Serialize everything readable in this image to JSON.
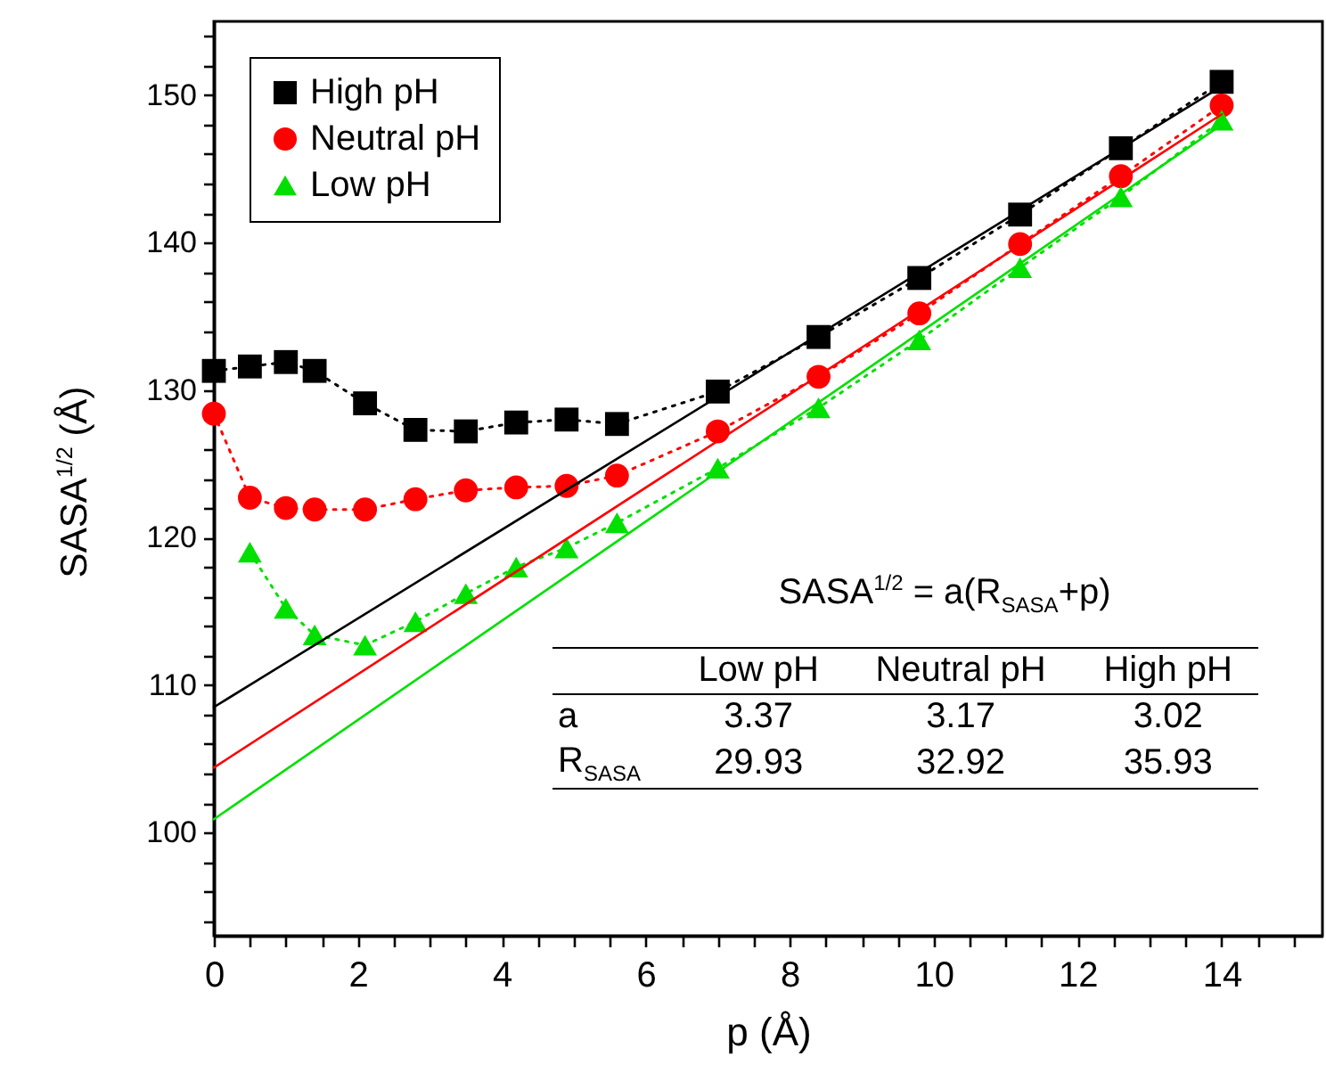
{
  "chart_data": {
    "type": "line",
    "xlabel": "p (Å)",
    "ylabel": "SASA$^{1/2}$ (Å)",
    "x": [
      0,
      0.5,
      1,
      1.4,
      2.1,
      2.8,
      3.5,
      4.2,
      4.9,
      5.6,
      7,
      8.4,
      9.8,
      11.2,
      12.6,
      14
    ],
    "xlim": [
      0,
      15.4
    ],
    "ylim": [
      93,
      155
    ],
    "xticks": [
      0,
      {
        "value": 0.5,
        "label": null
      },
      {
        "value": 1,
        "label": null
      },
      {
        "value": 1.5,
        "label": null
      },
      2,
      {
        "value": 2.5,
        "label": null
      },
      {
        "value": 3,
        "label": null
      },
      {
        "value": 3.5,
        "label": null
      },
      4,
      {
        "value": 4.5,
        "label": null
      },
      {
        "value": 5,
        "label": null
      },
      {
        "value": 5.5,
        "label": null
      },
      6,
      {
        "value": 6.5,
        "label": null
      },
      {
        "value": 7,
        "label": null
      },
      {
        "value": 7.5,
        "label": null
      },
      8,
      {
        "value": 8.5,
        "label": null
      },
      {
        "value": 9,
        "label": null
      },
      {
        "value": 9.5,
        "label": null
      },
      10,
      {
        "value": 10.5,
        "label": null
      },
      {
        "value": 11,
        "label": null
      },
      {
        "value": 11.5,
        "label": null
      },
      12,
      {
        "value": 12.5,
        "label": null
      },
      {
        "value": 13,
        "label": null
      },
      {
        "value": 13.5,
        "label": null
      },
      14,
      {
        "value": 14.5,
        "label": null
      },
      {
        "value": 15,
        "label": null
      }
    ],
    "yticks": [
      {
        "value": 94,
        "label": null
      },
      {
        "value": 96,
        "label": null
      },
      {
        "value": 98,
        "label": null
      },
      100,
      {
        "value": 102,
        "label": null
      },
      {
        "value": 104,
        "label": null
      },
      {
        "value": 106,
        "label": null
      },
      {
        "value": 108,
        "label": null
      },
      110,
      {
        "value": 112,
        "label": null
      },
      {
        "value": 114,
        "label": null
      },
      {
        "value": 116,
        "label": null
      },
      {
        "value": 118,
        "label": null
      },
      120,
      {
        "value": 122,
        "label": null
      },
      {
        "value": 124,
        "label": null
      },
      {
        "value": 126,
        "label": null
      },
      {
        "value": 128,
        "label": null
      },
      130,
      {
        "value": 132,
        "label": null
      },
      {
        "value": 134,
        "label": null
      },
      {
        "value": 136,
        "label": null
      },
      {
        "value": 138,
        "label": null
      },
      140,
      {
        "value": 142,
        "label": null
      },
      {
        "value": 144,
        "label": null
      },
      {
        "value": 146,
        "label": null
      },
      {
        "value": 148,
        "label": null
      },
      150,
      {
        "value": 152,
        "label": null
      },
      {
        "value": 154,
        "label": null
      }
    ],
    "grid": false,
    "legend": "top left",
    "series": [
      {
        "name": "High pH",
        "color": "#000000",
        "marker": "square",
        "line_style": "dotted",
        "values": [
          131.3,
          131.6,
          131.9,
          131.3,
          129.1,
          127.3,
          127.2,
          127.8,
          128.0,
          127.7,
          129.9,
          133.6,
          137.6,
          141.9,
          146.4,
          150.9
        ]
      },
      {
        "name": "Neutral pH",
        "color": "#ff0000",
        "marker": "circle",
        "line_style": "dotted",
        "values": [
          128.4,
          122.7,
          122.0,
          121.9,
          121.9,
          122.6,
          123.2,
          123.4,
          123.5,
          124.2,
          127.2,
          130.9,
          135.2,
          139.9,
          144.5,
          149.3
        ]
      },
      {
        "name": "Low pH",
        "color": "#00e000",
        "marker": "triangle",
        "line_style": "dotted",
        "values": [
          null,
          119.0,
          115.2,
          113.4,
          112.7,
          114.3,
          116.2,
          118.0,
          119.3,
          121.0,
          124.7,
          128.8,
          133.4,
          138.3,
          143.1,
          148.3
        ]
      },
      {
        "type": "line",
        "color": "#000000",
        "marker": "none",
        "line_style": "solid",
        "values": [
          108.5,
          null,
          null,
          null,
          null,
          null,
          null,
          null,
          null,
          null,
          null,
          null,
          null,
          null,
          null,
          150.6
        ]
      },
      {
        "type": "line",
        "color": "#ff0000",
        "marker": "none",
        "line_style": "solid",
        "values": [
          104.4,
          null,
          null,
          null,
          null,
          null,
          null,
          null,
          null,
          null,
          null,
          null,
          null,
          null,
          null,
          148.7
        ]
      },
      {
        "type": "line",
        "color": "#00e000",
        "marker": "none",
        "line_style": "solid",
        "values": [
          100.9,
          null,
          null,
          null,
          null,
          null,
          null,
          null,
          null,
          null,
          null,
          null,
          null,
          null,
          null,
          148.0
        ]
      }
    ],
    "annotations": [
      "SASA$^{1/2}$ = a(R$_{SASA}$+p)",
      "Low pH",
      "Neutral pH",
      "High pH",
      "a",
      "3.37",
      "3.17",
      "3.02",
      "R$_{SASA}$",
      "29.93",
      "32.92",
      "35.93"
    ]
  }
}
